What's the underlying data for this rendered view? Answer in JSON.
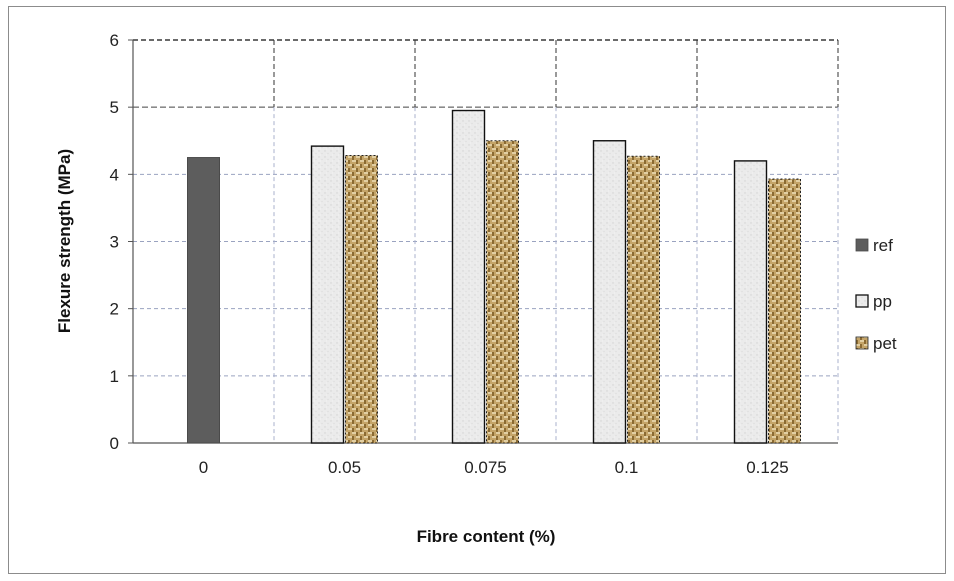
{
  "chart_data": {
    "type": "bar",
    "categories": [
      "0",
      "0.05",
      "0.075",
      "0.1",
      "0.125"
    ],
    "series": [
      {
        "name": "ref",
        "values": [
          4.25,
          null,
          null,
          null,
          null
        ],
        "color": "#5a5a5a"
      },
      {
        "name": "pp",
        "values": [
          null,
          4.42,
          4.95,
          4.5,
          4.2
        ],
        "color": "#e8e8e8"
      },
      {
        "name": "pet",
        "values": [
          null,
          4.28,
          4.5,
          4.27,
          3.93
        ],
        "color": "#b8975a"
      }
    ],
    "xlabel": "Fibre content (%)",
    "ylabel": "Flexure strength (MPa)",
    "ylim": [
      0,
      6
    ],
    "yticks": [
      "0",
      "1",
      "2",
      "3",
      "4",
      "5",
      "6"
    ],
    "grid": true,
    "legend_position": "right"
  }
}
